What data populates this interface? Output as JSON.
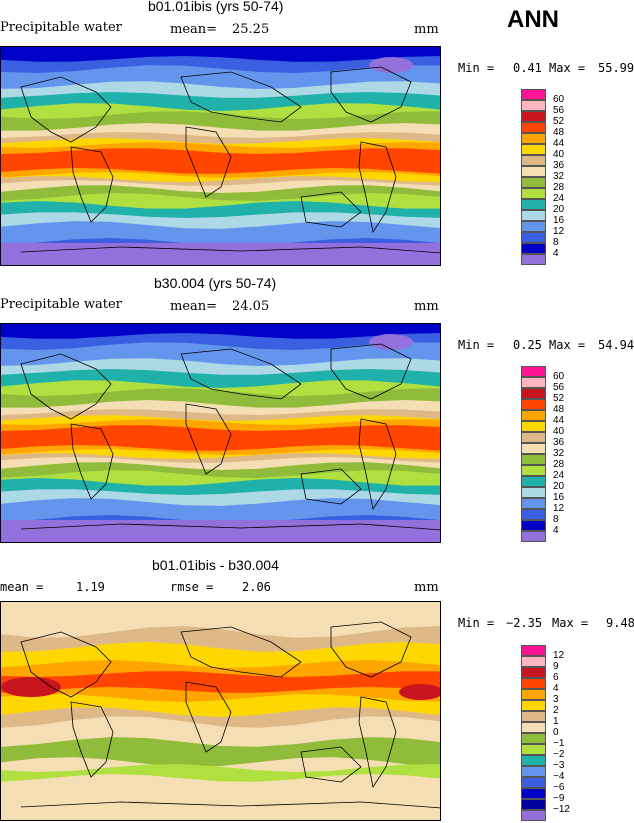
{
  "season": "ANN",
  "panels": [
    {
      "title": "b01.01ibis (yrs 50-74)",
      "variable": "Precipitable water",
      "stat1_label": "mean=",
      "stat1_value": "25.25",
      "stat2_label": "",
      "stat2_value": "",
      "units": "mm",
      "min_label": "Min =",
      "min_value": "0.41",
      "max_label": "Max =",
      "max_value": "55.99",
      "legend_ticks": [
        "60",
        "56",
        "52",
        "48",
        "44",
        "40",
        "36",
        "32",
        "28",
        "24",
        "20",
        "16",
        "12",
        "8",
        "4"
      ],
      "legend_colors": [
        "#ff1493",
        "#ffb6c1",
        "#c8141e",
        "#ff4500",
        "#ffa500",
        "#ffd700",
        "#deb887",
        "#f5deb3",
        "#8fbc3a",
        "#b0e040",
        "#20b2aa",
        "#add8e6",
        "#6495ed",
        "#3a5fe0",
        "#0000c8",
        "#9370db"
      ],
      "kind": "abs"
    },
    {
      "title": "b30.004 (yrs 50-74)",
      "variable": "Precipitable water",
      "stat1_label": "mean=",
      "stat1_value": "24.05",
      "stat2_label": "",
      "stat2_value": "",
      "units": "mm",
      "min_label": "Min =",
      "min_value": "0.25",
      "max_label": "Max =",
      "max_value": "54.94",
      "legend_ticks": [
        "60",
        "56",
        "52",
        "48",
        "44",
        "40",
        "36",
        "32",
        "28",
        "24",
        "20",
        "16",
        "12",
        "8",
        "4"
      ],
      "legend_colors": [
        "#ff1493",
        "#ffb6c1",
        "#c8141e",
        "#ff4500",
        "#ffa500",
        "#ffd700",
        "#deb887",
        "#f5deb3",
        "#8fbc3a",
        "#b0e040",
        "#20b2aa",
        "#add8e6",
        "#6495ed",
        "#3a5fe0",
        "#0000c8",
        "#9370db"
      ],
      "kind": "abs"
    },
    {
      "title": "b01.01ibis - b30.004",
      "variable": "",
      "stat1_label": "mean =",
      "stat1_value": "1.19",
      "stat2_label": "rmse =",
      "stat2_value": "2.06",
      "units": "mm",
      "min_label": "Min =",
      "min_value": "−2.35",
      "max_label": "Max =",
      "max_value": "9.48",
      "legend_ticks": [
        "12",
        "9",
        "6",
        "4",
        "3",
        "2",
        "1",
        "0",
        "−1",
        "−2",
        "−3",
        "−4",
        "−6",
        "−9",
        "−12"
      ],
      "legend_colors": [
        "#ff1493",
        "#ffb6c1",
        "#c8141e",
        "#ff4500",
        "#ffa500",
        "#ffd700",
        "#deb887",
        "#f5deb3",
        "#8fbc3a",
        "#b0e040",
        "#20b2aa",
        "#6495ed",
        "#3a5fe0",
        "#0000c8",
        "#0000a0",
        "#9370db"
      ],
      "kind": "diff"
    }
  ]
}
